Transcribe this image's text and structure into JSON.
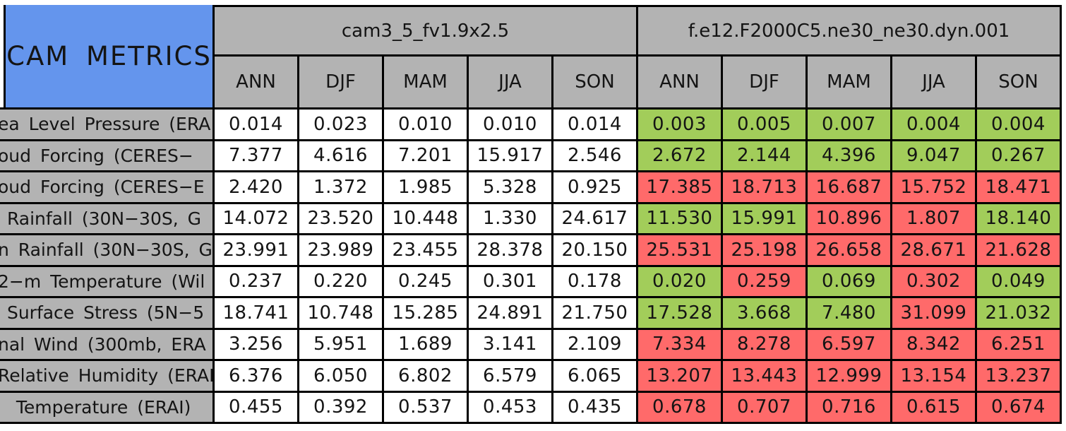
{
  "colors": {
    "title_bg": "#6495ED",
    "header_bg": "#B3B3B3",
    "control_cell_bg": "#FFFFFF",
    "better_cell_bg": "#A2CD5A",
    "worse_cell_bg": "#FF6A6A",
    "border": "#000000"
  },
  "chart_data": {
    "type": "table",
    "title": "CAM METRICS",
    "column_groups": [
      {
        "model": "cam3_5_fv1.9x2.5",
        "seasons": [
          "ANN",
          "DJF",
          "MAM",
          "JJA",
          "SON"
        ]
      },
      {
        "model": "f.e12.F2000C5.ne30_ne30.dyn.001",
        "seasons": [
          "ANN",
          "DJF",
          "MAM",
          "JJA",
          "SON"
        ]
      }
    ],
    "status_legend": {
      "better": "green cell",
      "worse": "red cell"
    },
    "rows": [
      {
        "label": "ea Level Pressure (ERA",
        "control_values": [
          "0.014",
          "0.023",
          "0.010",
          "0.010",
          "0.014"
        ],
        "test_values": [
          "0.003",
          "0.005",
          "0.007",
          "0.004",
          "0.004"
        ],
        "test_status": [
          "better",
          "better",
          "better",
          "better",
          "better"
        ]
      },
      {
        "label": "oud Forcing (CERES−",
        "control_values": [
          "7.377",
          "4.616",
          "7.201",
          "15.917",
          "2.546"
        ],
        "test_values": [
          "2.672",
          "2.144",
          "4.396",
          "9.047",
          "0.267"
        ],
        "test_status": [
          "better",
          "better",
          "better",
          "better",
          "better"
        ]
      },
      {
        "label": "oud Forcing (CERES−E",
        "control_values": [
          "2.420",
          "1.372",
          "1.985",
          "5.328",
          "0.925"
        ],
        "test_values": [
          "17.385",
          "18.713",
          "16.687",
          "15.752",
          "18.471"
        ],
        "test_status": [
          "worse",
          "worse",
          "worse",
          "worse",
          "worse"
        ]
      },
      {
        "label": " Rainfall (30N−30S, G",
        "control_values": [
          "14.072",
          "23.520",
          "10.448",
          "1.330",
          "24.617"
        ],
        "test_values": [
          "11.530",
          "15.991",
          "10.896",
          "1.807",
          "18.140"
        ],
        "test_status": [
          "better",
          "better",
          "worse",
          "worse",
          "better"
        ]
      },
      {
        "label": "n Rainfall (30N−30S, G",
        "control_values": [
          "23.991",
          "23.989",
          "23.455",
          "28.378",
          "20.150"
        ],
        "test_values": [
          "25.531",
          "25.198",
          "26.658",
          "28.671",
          "21.628"
        ],
        "test_status": [
          "worse",
          "worse",
          "worse",
          "worse",
          "worse"
        ]
      },
      {
        "label": "2−m Temperature (Wil",
        "control_values": [
          "0.237",
          "0.220",
          "0.245",
          "0.301",
          "0.178"
        ],
        "test_values": [
          "0.020",
          "0.259",
          "0.069",
          "0.302",
          "0.049"
        ],
        "test_status": [
          "better",
          "worse",
          "better",
          "worse",
          "better"
        ]
      },
      {
        "label": " Surface Stress (5N−5",
        "control_values": [
          "18.741",
          "10.748",
          "15.285",
          "24.891",
          "21.750"
        ],
        "test_values": [
          "17.528",
          "3.668",
          "7.480",
          "31.099",
          "21.032"
        ],
        "test_status": [
          "better",
          "better",
          "better",
          "worse",
          "better"
        ]
      },
      {
        "label": "nal Wind (300mb, ERA",
        "control_values": [
          "3.256",
          "5.951",
          "1.689",
          "3.141",
          "2.109"
        ],
        "test_values": [
          "7.334",
          "8.278",
          "6.597",
          "8.342",
          "6.251"
        ],
        "test_status": [
          "worse",
          "worse",
          "worse",
          "worse",
          "worse"
        ]
      },
      {
        "label": "Relative Humidity (ERAI",
        "control_values": [
          "6.376",
          "6.050",
          "6.802",
          "6.579",
          "6.065"
        ],
        "test_values": [
          "13.207",
          "13.443",
          "12.999",
          "13.154",
          "13.237"
        ],
        "test_status": [
          "worse",
          "worse",
          "worse",
          "worse",
          "worse"
        ]
      },
      {
        "label": "  Temperature (ERAI)",
        "control_values": [
          "0.455",
          "0.392",
          "0.537",
          "0.453",
          "0.435"
        ],
        "test_values": [
          "0.678",
          "0.707",
          "0.716",
          "0.615",
          "0.674"
        ],
        "test_status": [
          "worse",
          "worse",
          "worse",
          "worse",
          "worse"
        ]
      }
    ]
  }
}
